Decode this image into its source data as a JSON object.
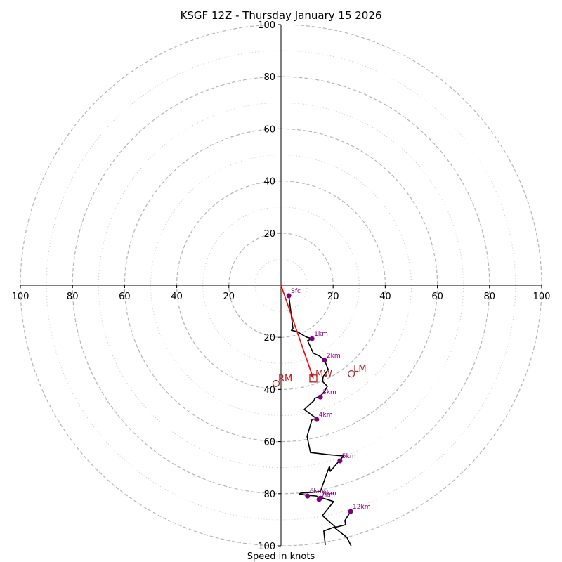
{
  "chart_data": {
    "type": "line",
    "subtype": "hodograph",
    "title": "KSGF 12Z - Thursday January 15 2026",
    "xlabel": "Speed in knots",
    "ylabel": "",
    "xlim": [
      -100,
      100
    ],
    "ylim": [
      -100,
      100
    ],
    "grid": {
      "major_rings": [
        20,
        40,
        60,
        80,
        100
      ],
      "minor_rings": [
        10,
        30,
        50,
        70,
        90
      ]
    },
    "x_tick_labels": [
      "100",
      "80",
      "60",
      "40",
      "20",
      "20",
      "40",
      "60",
      "80",
      "100"
    ],
    "y_tick_labels": [
      "100",
      "80",
      "60",
      "40",
      "20",
      "20",
      "40",
      "60",
      "80",
      "100"
    ],
    "x_ticks": [
      -100,
      -80,
      -60,
      -40,
      -20,
      20,
      40,
      60,
      80,
      100
    ],
    "y_ticks": [
      100,
      80,
      60,
      40,
      20,
      -20,
      -40,
      -60,
      -80,
      -100
    ],
    "hodograph_trace": {
      "color": "#000000",
      "u": [
        3.0,
        4.6,
        4.0,
        6.2,
        9.7,
        11.9,
        10.2,
        12.4,
        14.8,
        16.7,
        18.1,
        16.2,
        15.9,
        17.8,
        16.7,
        15.1,
        13.7,
        12.9,
        12.7,
        8.9,
        13.7,
        11.9,
        10.0,
        11.3,
        18.3,
        24.0,
        22.6,
        18.9,
        18.6,
        17.0,
        15.1,
        7.5,
        7.0,
        10.2,
        13.7,
        14.6,
        15.1,
        20.2,
        15.9,
        20.8,
        16.4,
        17.0
      ],
      "v": [
        -4.0,
        -16.7,
        -17.3,
        -17.8,
        -19.9,
        -20.5,
        -21.3,
        -26.1,
        -27.2,
        -28.8,
        -32.3,
        -35.0,
        -36.9,
        -38.8,
        -40.7,
        -42.6,
        -43.1,
        -43.4,
        -44.2,
        -47.7,
        -51.2,
        -51.5,
        -58.0,
        -64.2,
        -65.0,
        -65.5,
        -67.1,
        -71.4,
        -69.5,
        -73.8,
        -79.2,
        -79.8,
        -80.1,
        -80.6,
        -80.9,
        -82.0,
        -81.4,
        -83.0,
        -88.4,
        -92.7,
        -94.3,
        -99.7
      ]
    },
    "upper_trace": {
      "color": "#000000",
      "u": [
        26.7,
        24.5,
        24.8,
        20.5,
        25.3,
        26.9
      ],
      "v": [
        -86.8,
        -90.3,
        -91.9,
        -93.0,
        -96.8,
        -100.0
      ]
    },
    "height_markers": [
      {
        "label": "Sfc",
        "u": 3.0,
        "v": -4.0
      },
      {
        "label": "1km",
        "u": 11.9,
        "v": -20.5
      },
      {
        "label": "2km",
        "u": 16.7,
        "v": -28.8
      },
      {
        "label": "3km",
        "u": 15.1,
        "v": -42.9
      },
      {
        "label": "4km",
        "u": 13.7,
        "v": -51.5
      },
      {
        "label": "5km",
        "u": 22.6,
        "v": -67.4
      },
      {
        "label": "6km",
        "u": 10.2,
        "v": -80.9
      },
      {
        "label": "7km",
        "u": 14.6,
        "v": -82.2
      },
      {
        "label": "8km",
        "u": 15.1,
        "v": -81.7
      },
      {
        "label": "12km",
        "u": 26.7,
        "v": -86.8
      }
    ],
    "marker_color": "#800080",
    "storm_motion": {
      "color": "#b22222",
      "RM": {
        "label": "RM",
        "u": -1.9,
        "v": -37.7
      },
      "LM": {
        "label": "LM",
        "u": 27.0,
        "v": -34.0
      },
      "MW": {
        "label": "MW",
        "u": 12.4,
        "v": -35.8
      }
    },
    "shear_vector": {
      "color": "#ff0000",
      "from": [
        0,
        0
      ],
      "to": [
        12.4,
        -35.8
      ]
    }
  }
}
